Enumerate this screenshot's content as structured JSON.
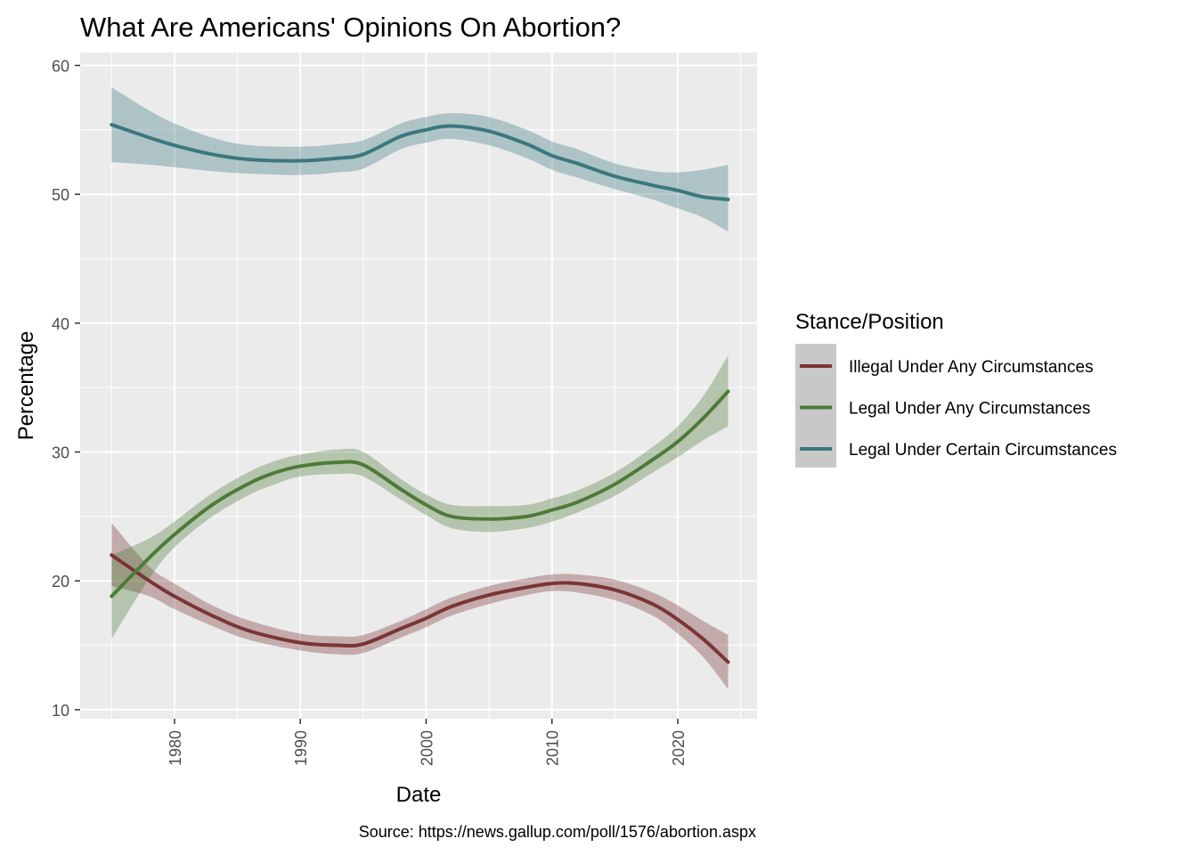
{
  "chart_data": {
    "type": "line",
    "title": "What Are Americans' Opinions On Abortion?",
    "xlabel": "Date",
    "ylabel": "Percentage",
    "caption": "Source: https://news.gallup.com/poll/1576/abortion.aspx",
    "xlim": [
      1972.5,
      2026.3
    ],
    "ylim": [
      9.3,
      61.0
    ],
    "x_ticks": [
      1980,
      1990,
      2000,
      2010,
      2020
    ],
    "x_tick_labels": [
      "1980",
      "1990",
      "2000",
      "2010",
      "2020"
    ],
    "y_ticks": [
      10,
      20,
      30,
      40,
      50,
      60
    ],
    "y_tick_labels": [
      "10",
      "20",
      "30",
      "40",
      "50",
      "60"
    ],
    "x_tick_rotation": "vertical",
    "grid": true,
    "panel_background": "#ebebeb",
    "legend": {
      "title": "Stance/Position",
      "position": "right",
      "key_background": "#c8c8c8"
    },
    "series": [
      {
        "name": "Illegal Under Any Circumstances",
        "color": "#7b3535",
        "x": [
          1975,
          1978,
          1980,
          1983,
          1986,
          1990,
          1993,
          1995,
          1998,
          2000,
          2002,
          2005,
          2008,
          2010,
          2012,
          2015,
          2018,
          2020,
          2022,
          2024
        ],
        "y": [
          22.0,
          20.0,
          18.8,
          17.3,
          16.1,
          15.2,
          15.0,
          15.1,
          16.3,
          17.1,
          18.0,
          18.9,
          19.5,
          19.8,
          19.8,
          19.3,
          18.2,
          17.0,
          15.5,
          13.7
        ],
        "lower": [
          19.6,
          18.8,
          17.8,
          16.5,
          15.4,
          14.6,
          14.3,
          14.4,
          15.6,
          16.4,
          17.3,
          18.2,
          18.9,
          19.2,
          19.1,
          18.5,
          17.3,
          15.9,
          14.1,
          11.6
        ],
        "upper": [
          24.5,
          21.1,
          19.8,
          18.1,
          16.9,
          15.9,
          15.7,
          15.8,
          16.9,
          17.8,
          18.7,
          19.6,
          20.2,
          20.5,
          20.5,
          20.1,
          19.1,
          18.1,
          16.9,
          15.8
        ]
      },
      {
        "name": "Legal Under Any Circumstances",
        "color": "#4e7a38",
        "x": [
          1975,
          1978,
          1980,
          1983,
          1986,
          1988,
          1990,
          1993,
          1995,
          1998,
          2000,
          2002,
          2005,
          2008,
          2010,
          2012,
          2015,
          2018,
          2020,
          2022,
          2024
        ],
        "y": [
          18.8,
          21.8,
          23.6,
          25.9,
          27.6,
          28.4,
          28.9,
          29.2,
          29.0,
          27.1,
          25.9,
          25.0,
          24.8,
          25.0,
          25.5,
          26.1,
          27.5,
          29.4,
          30.8,
          32.6,
          34.7
        ],
        "lower": [
          15.5,
          20.2,
          22.6,
          25.0,
          26.7,
          27.5,
          28.1,
          28.3,
          28.1,
          26.3,
          25.1,
          24.1,
          23.8,
          24.1,
          24.6,
          25.3,
          26.6,
          28.4,
          29.6,
          30.9,
          32.0
        ],
        "upper": [
          22.0,
          23.3,
          24.6,
          26.8,
          28.5,
          29.3,
          29.8,
          30.2,
          30.0,
          27.9,
          26.7,
          25.9,
          25.8,
          25.9,
          26.4,
          27.0,
          28.4,
          30.4,
          32.0,
          34.3,
          37.5
        ]
      },
      {
        "name": "Legal Under Certain Circumstances",
        "color": "#3b787d",
        "x": [
          1975,
          1978,
          1980,
          1983,
          1986,
          1990,
          1993,
          1995,
          1998,
          2000,
          2002,
          2005,
          2008,
          2010,
          2012,
          2015,
          2018,
          2020,
          2022,
          2024
        ],
        "y": [
          55.4,
          54.4,
          53.8,
          53.1,
          52.7,
          52.6,
          52.8,
          53.1,
          54.5,
          55.0,
          55.3,
          54.9,
          53.9,
          53.0,
          52.4,
          51.4,
          50.7,
          50.3,
          49.8,
          49.6
        ],
        "lower": [
          52.5,
          52.3,
          52.1,
          51.8,
          51.6,
          51.5,
          51.7,
          52.0,
          53.5,
          54.0,
          54.3,
          53.8,
          52.8,
          51.9,
          51.3,
          50.4,
          49.6,
          48.9,
          48.2,
          47.1
        ],
        "upper": [
          58.3,
          56.5,
          55.5,
          54.4,
          53.8,
          53.7,
          53.9,
          54.2,
          55.5,
          56.0,
          56.3,
          56.0,
          55.0,
          54.1,
          53.5,
          52.4,
          51.8,
          51.7,
          51.9,
          52.3
        ]
      }
    ]
  }
}
